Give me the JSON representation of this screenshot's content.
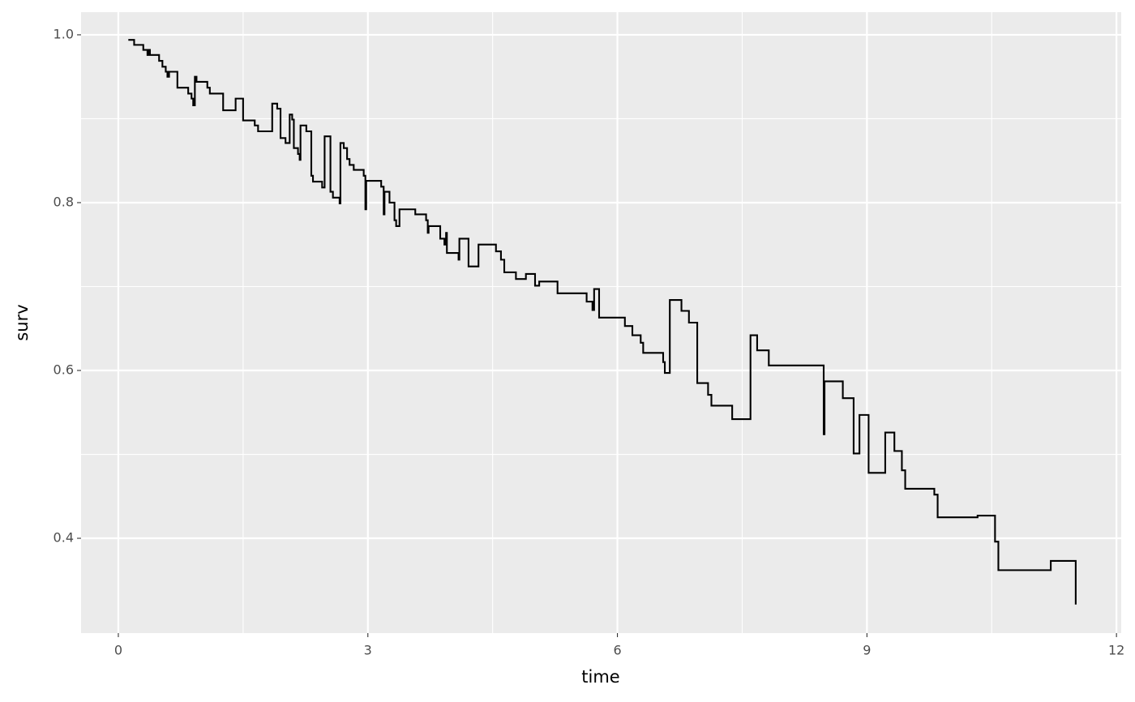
{
  "chart_data": {
    "type": "step",
    "x_label": "time",
    "y_label": "surv",
    "color": "#000000",
    "grid": true,
    "xlim": [
      -0.448,
      12.057
    ],
    "ylim": [
      0.287,
      1.027
    ],
    "xticks": [
      0,
      3,
      6,
      9,
      12
    ],
    "yticks": [
      {
        "value": 1.0,
        "label": "1.0"
      },
      0.8,
      0.6,
      0.4
    ],
    "x": [
      0.12,
      0.19,
      0.3,
      0.35,
      0.37,
      0.38,
      0.49,
      0.53,
      0.57,
      0.59,
      0.61,
      0.71,
      0.84,
      0.88,
      0.9,
      0.92,
      0.94,
      1.07,
      1.1,
      1.26,
      1.41,
      1.5,
      1.64,
      1.68,
      1.85,
      1.91,
      1.95,
      2.01,
      2.06,
      2.09,
      2.11,
      2.16,
      2.18,
      2.19,
      2.26,
      2.32,
      2.34,
      2.45,
      2.48,
      2.55,
      2.58,
      2.66,
      2.67,
      2.71,
      2.75,
      2.78,
      2.83,
      2.95,
      2.97,
      2.98,
      3.16,
      3.19,
      3.2,
      3.26,
      3.32,
      3.34,
      3.38,
      3.57,
      3.7,
      3.72,
      3.73,
      3.87,
      3.92,
      3.94,
      3.95,
      4.09,
      4.1,
      4.21,
      4.33,
      4.54,
      4.6,
      4.64,
      4.78,
      4.9,
      5.01,
      5.06,
      5.28,
      5.63,
      5.7,
      5.72,
      5.78,
      6.09,
      6.18,
      6.28,
      6.31,
      6.55,
      6.57,
      6.63,
      6.77,
      6.86,
      6.96,
      7.09,
      7.13,
      7.38,
      7.6,
      7.68,
      7.82,
      8.48,
      8.49,
      8.71,
      8.84,
      8.91,
      9.02,
      9.22,
      9.33,
      9.42,
      9.46,
      9.81,
      9.85,
      10.33,
      10.54,
      10.58,
      11.21,
      11.51
    ],
    "values": [
      0.994,
      0.988,
      0.982,
      0.976,
      0.982,
      0.976,
      0.969,
      0.962,
      0.956,
      0.95,
      0.956,
      0.937,
      0.93,
      0.924,
      0.916,
      0.95,
      0.944,
      0.937,
      0.93,
      0.91,
      0.924,
      0.898,
      0.892,
      0.885,
      0.918,
      0.912,
      0.877,
      0.871,
      0.905,
      0.899,
      0.865,
      0.858,
      0.851,
      0.892,
      0.885,
      0.832,
      0.825,
      0.818,
      0.879,
      0.813,
      0.806,
      0.799,
      0.871,
      0.865,
      0.852,
      0.845,
      0.839,
      0.832,
      0.792,
      0.826,
      0.819,
      0.786,
      0.813,
      0.8,
      0.779,
      0.772,
      0.792,
      0.786,
      0.779,
      0.764,
      0.772,
      0.757,
      0.75,
      0.764,
      0.74,
      0.732,
      0.757,
      0.724,
      0.75,
      0.742,
      0.732,
      0.717,
      0.709,
      0.715,
      0.701,
      0.706,
      0.692,
      0.682,
      0.672,
      0.697,
      0.663,
      0.653,
      0.642,
      0.633,
      0.621,
      0.61,
      0.597,
      0.684,
      0.671,
      0.657,
      0.585,
      0.571,
      0.558,
      0.542,
      0.642,
      0.624,
      0.606,
      0.524,
      0.587,
      0.567,
      0.501,
      0.547,
      0.478,
      0.526,
      0.504,
      0.481,
      0.459,
      0.452,
      0.425,
      0.427,
      0.396,
      0.362,
      0.373,
      0.321
    ]
  }
}
